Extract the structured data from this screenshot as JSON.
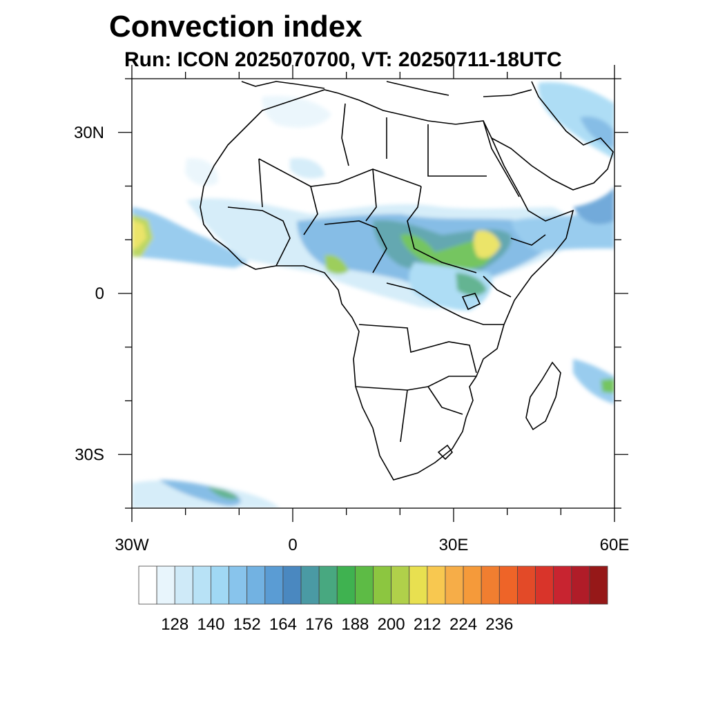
{
  "title": "Convection index",
  "subtitle": "Run: ICON 2025070700,  VT: 20250711-18UTC",
  "map": {
    "lon_range": [
      -30,
      60
    ],
    "lat_range": [
      -40,
      40
    ],
    "lon_ticks": [
      {
        "value": -30,
        "label": "30W"
      },
      {
        "value": 0,
        "label": "0"
      },
      {
        "value": 30,
        "label": "30E"
      },
      {
        "value": 60,
        "label": "60E"
      }
    ],
    "lat_ticks": [
      {
        "value": 30,
        "label": "30N"
      },
      {
        "value": 0,
        "label": "0"
      },
      {
        "value": -30,
        "label": "30S"
      }
    ]
  },
  "colorbar": {
    "labels": [
      "128",
      "140",
      "152",
      "164",
      "176",
      "188",
      "200",
      "212",
      "224",
      "236"
    ],
    "colors": [
      "#ffffff",
      "#e8f5fc",
      "#cfeaf8",
      "#b8e2f6",
      "#a0d8f4",
      "#88c4ec",
      "#72b2e2",
      "#5a9cd4",
      "#4a88c0",
      "#4a9aa4",
      "#48a880",
      "#3fb250",
      "#5dbb45",
      "#8cc640",
      "#b0d04a",
      "#e8e050",
      "#f8c850",
      "#f6ad48",
      "#f59a3a",
      "#f17e30",
      "#ee6428",
      "#e34a28",
      "#d9342a",
      "#c82430",
      "#b01c28",
      "#961818"
    ]
  }
}
